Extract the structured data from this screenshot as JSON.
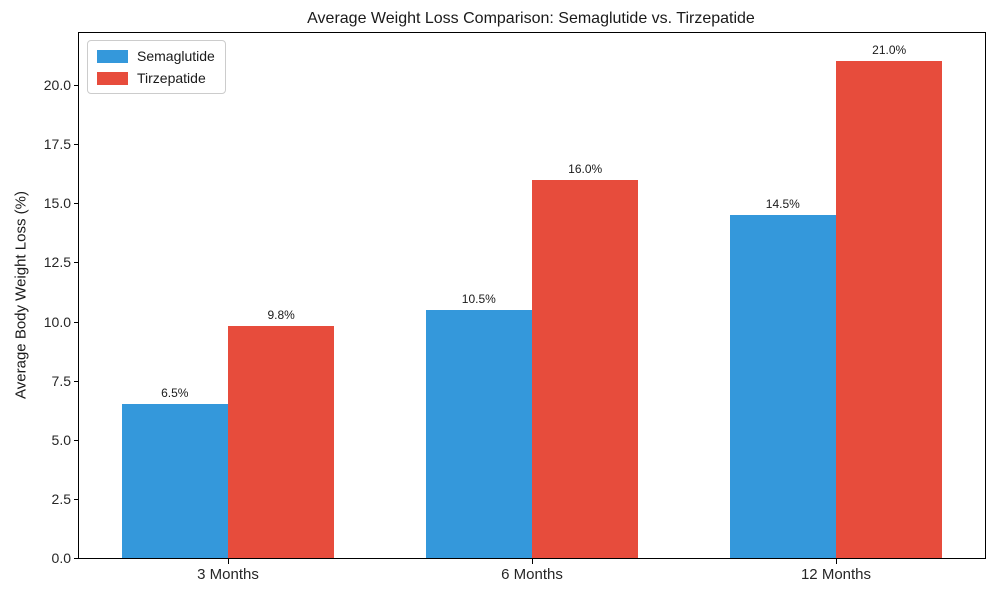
{
  "chart_data": {
    "type": "bar",
    "title": "Average Weight Loss Comparison: Semaglutide vs. Tirzepatide",
    "categories": [
      "3 Months",
      "6 Months",
      "12 Months"
    ],
    "series": [
      {
        "name": "Semaglutide",
        "color": "#3498db",
        "values": [
          6.5,
          10.5,
          14.5
        ],
        "labels": [
          "6.5%",
          "10.5%",
          "14.5%"
        ]
      },
      {
        "name": "Tirzepatide",
        "color": "#e74c3c",
        "values": [
          9.8,
          16.0,
          21.0
        ],
        "labels": [
          "9.8%",
          "16.0%",
          "21.0%"
        ]
      }
    ],
    "xlabel": "",
    "ylabel": "Average Body Weight Loss (%)",
    "ylim": [
      0,
      22.2
    ],
    "yticks": [
      0.0,
      2.5,
      5.0,
      7.5,
      10.0,
      12.5,
      15.0,
      17.5,
      20.0
    ],
    "ytick_labels": [
      "0.0",
      "2.5",
      "5.0",
      "7.5",
      "10.0",
      "12.5",
      "15.0",
      "17.5",
      "20.0"
    ],
    "bar_width": 0.35,
    "grid": false,
    "legend_position": "upper left",
    "colors": {
      "background": "#ffffff",
      "spine": "#000000",
      "text": "#1a1a1a",
      "legend_border": "#cccccc"
    }
  }
}
